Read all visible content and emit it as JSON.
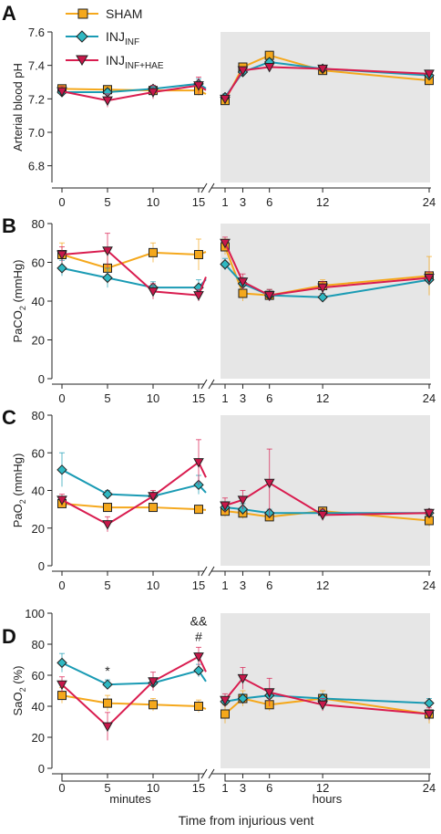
{
  "figure": {
    "x_title": "Time from injurious vent",
    "bracket_left_label": "minutes",
    "bracket_right_label": "hours",
    "legend": [
      {
        "label": "SHAM",
        "sub": ""
      },
      {
        "label": "INJ",
        "sub": "INF"
      },
      {
        "label": "INJ",
        "sub": "INF+HAE"
      }
    ],
    "colors": {
      "sham": "#F5A81C",
      "inf": "#1A9BB4",
      "hae": "#D91C4F",
      "shade": "#E6E6E6",
      "axis": "#222222",
      "sham_face": "#F5A81C",
      "inf_face": "#2FB8C2",
      "hae_face": "#C8174A"
    },
    "markers": {
      "sham": "square",
      "inf": "diamond",
      "hae": "triangle-down"
    }
  },
  "chart_data": [
    {
      "type": "line",
      "panel_letter": "A",
      "ylabel": "Arterial blood pH",
      "ylabel_sub": "",
      "ylim": [
        6.7,
        7.6
      ],
      "yticks": [
        6.8,
        7.0,
        7.2,
        7.4,
        7.6
      ],
      "ytick_labels": [
        "6.8",
        "7.0",
        "7.2",
        "7.4",
        "7.6"
      ],
      "x_minutes": [
        0,
        5,
        10,
        15
      ],
      "x_minutes_labels": [
        "0",
        "5",
        "10",
        "15"
      ],
      "x_hours": [
        1,
        3,
        6,
        12,
        24
      ],
      "x_hours_labels": [
        "1",
        "3",
        "6",
        "12",
        "24"
      ],
      "series": [
        {
          "name": "SHAM",
          "key": "sham",
          "minutes": [
            7.26,
            7.255,
            7.25,
            7.25
          ],
          "hours": [
            7.19,
            7.39,
            7.46,
            7.37,
            7.31
          ],
          "err_min": [
            0.02,
            0.02,
            0.03,
            0.03
          ],
          "err_hr": [
            0.02,
            0.02,
            0.02,
            0.02,
            0.03
          ]
        },
        {
          "name": "INJ INF",
          "key": "inf",
          "minutes": [
            7.24,
            7.24,
            7.26,
            7.29
          ],
          "hours": [
            7.21,
            7.36,
            7.42,
            7.38,
            7.34
          ],
          "err_min": [
            0.01,
            0.02,
            0.02,
            0.03
          ],
          "err_hr": [
            0.02,
            0.02,
            0.02,
            0.02,
            0.02
          ]
        },
        {
          "name": "INJ INF+HAE",
          "key": "hae",
          "minutes": [
            7.245,
            7.19,
            7.24,
            7.28
          ],
          "hours": [
            7.2,
            7.37,
            7.39,
            7.38,
            7.35
          ],
          "err_min": [
            0.03,
            0.04,
            0.04,
            0.05
          ],
          "err_hr": [
            0.02,
            0.02,
            0.02,
            0.02,
            0.02
          ]
        }
      ],
      "annotations": []
    },
    {
      "type": "line",
      "panel_letter": "B",
      "ylabel": "PaCO",
      "ylabel_sub": "2",
      "ylabel_unit": " (mmHg)",
      "ylim": [
        0,
        80
      ],
      "yticks": [
        0,
        20,
        40,
        60,
        80
      ],
      "ytick_labels": [
        "0",
        "20",
        "40",
        "60",
        "80"
      ],
      "x_minutes": [
        0,
        5,
        10,
        15
      ],
      "x_minutes_labels": [
        "0",
        "5",
        "10",
        "15"
      ],
      "x_hours": [
        1,
        3,
        6,
        12,
        24
      ],
      "x_hours_labels": [
        "1",
        "3",
        "6",
        "12",
        "24"
      ],
      "series": [
        {
          "name": "SHAM",
          "key": "sham",
          "minutes": [
            64,
            57,
            65,
            64
          ],
          "hours": [
            68,
            44,
            43,
            48,
            53
          ],
          "err_min": [
            6,
            8,
            5,
            8
          ],
          "err_hr": [
            4,
            4,
            3,
            3,
            10
          ]
        },
        {
          "name": "INJ INF",
          "key": "inf",
          "minutes": [
            57,
            52,
            47,
            47
          ],
          "hours": [
            59,
            49,
            43,
            42,
            51
          ],
          "err_min": [
            4,
            5,
            3,
            4
          ],
          "err_hr": [
            3,
            3,
            3,
            2,
            3
          ]
        },
        {
          "name": "INJ INF+HAE",
          "key": "hae",
          "minutes": [
            64,
            66,
            45,
            43
          ],
          "hours": [
            70,
            50,
            43,
            47,
            52
          ],
          "err_min": [
            4,
            9,
            4,
            3
          ],
          "err_hr": [
            3,
            4,
            3,
            3,
            3
          ]
        }
      ],
      "annotations": []
    },
    {
      "type": "line",
      "panel_letter": "C",
      "ylabel": "PaO",
      "ylabel_sub": "2",
      "ylabel_unit": " (mmHg)",
      "ylim": [
        0,
        80
      ],
      "yticks": [
        0,
        20,
        40,
        60,
        80
      ],
      "ytick_labels": [
        "0",
        "20",
        "40",
        "60",
        "80"
      ],
      "x_minutes": [
        0,
        5,
        10,
        15
      ],
      "x_minutes_labels": [
        "0",
        "5",
        "10",
        "15"
      ],
      "x_hours": [
        1,
        3,
        6,
        12,
        24
      ],
      "x_hours_labels": [
        "1",
        "3",
        "6",
        "12",
        "24"
      ],
      "series": [
        {
          "name": "SHAM",
          "key": "sham",
          "minutes": [
            33,
            31,
            31,
            30
          ],
          "hours": [
            29,
            28,
            26,
            29,
            24
          ],
          "err_min": [
            2,
            2,
            2,
            2
          ],
          "err_hr": [
            3,
            3,
            2,
            2,
            3
          ]
        },
        {
          "name": "INJ INF",
          "key": "inf",
          "minutes": [
            51,
            38,
            37,
            43
          ],
          "hours": [
            31,
            30,
            28,
            28,
            28
          ],
          "err_min": [
            9,
            2,
            2,
            5
          ],
          "err_hr": [
            3,
            3,
            2,
            2,
            2
          ]
        },
        {
          "name": "INJ INF+HAE",
          "key": "hae",
          "minutes": [
            35,
            22,
            37,
            55
          ],
          "hours": [
            32,
            35,
            44,
            27,
            28
          ],
          "err_min": [
            3,
            4,
            3,
            12
          ],
          "err_hr": [
            4,
            5,
            18,
            3,
            2
          ]
        }
      ],
      "annotations": []
    },
    {
      "type": "line",
      "panel_letter": "D",
      "ylabel": "SaO",
      "ylabel_sub": "2",
      "ylabel_unit": " (%)",
      "ylim": [
        0,
        100
      ],
      "yticks": [
        0,
        20,
        40,
        60,
        80,
        100
      ],
      "ytick_labels": [
        "0",
        "20",
        "40",
        "60",
        "80",
        "100"
      ],
      "x_minutes": [
        0,
        5,
        10,
        15
      ],
      "x_minutes_labels": [
        "0",
        "5",
        "10",
        "15"
      ],
      "x_hours": [
        1,
        3,
        6,
        12,
        24
      ],
      "x_hours_labels": [
        "1",
        "3",
        "6",
        "12",
        "24"
      ],
      "series": [
        {
          "name": "SHAM",
          "key": "sham",
          "minutes": [
            47,
            42,
            41,
            40
          ],
          "hours": [
            35,
            45,
            41,
            45,
            35
          ],
          "err_min": [
            5,
            5,
            4,
            4
          ],
          "err_hr": [
            6,
            5,
            4,
            5,
            6
          ]
        },
        {
          "name": "INJ INF",
          "key": "inf",
          "minutes": [
            68,
            54,
            55,
            63
          ],
          "hours": [
            43,
            45,
            47,
            45,
            42
          ],
          "err_min": [
            6,
            3,
            3,
            4
          ],
          "err_hr": [
            3,
            3,
            3,
            3,
            3
          ]
        },
        {
          "name": "INJ INF+HAE",
          "key": "hae",
          "minutes": [
            54,
            27,
            56,
            72
          ],
          "hours": [
            44,
            58,
            49,
            41,
            35
          ],
          "err_min": [
            5,
            9,
            6,
            6
          ],
          "err_hr": [
            4,
            7,
            9,
            4,
            4
          ]
        }
      ],
      "annotations": [
        {
          "text": "*",
          "at": "minutes",
          "x": 5,
          "y": 60
        },
        {
          "text": "#",
          "at": "minutes",
          "x": 15,
          "y": 82
        },
        {
          "text": "&&",
          "at": "minutes",
          "x": 15,
          "y": 92
        }
      ]
    }
  ]
}
